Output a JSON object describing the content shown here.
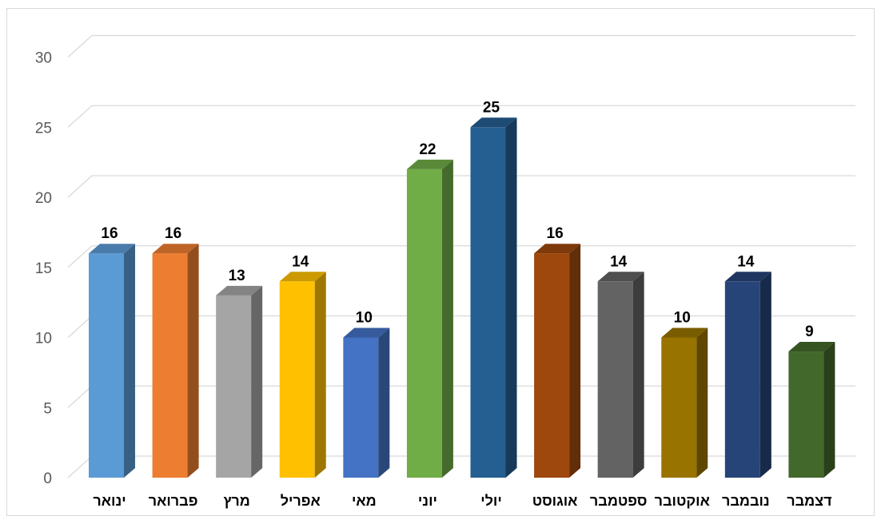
{
  "chart_data": {
    "type": "bar",
    "style": "3d-column",
    "title": "",
    "xlabel": "",
    "ylabel": "",
    "ylim": [
      0,
      30
    ],
    "yticks": [
      0,
      5,
      10,
      15,
      20,
      25,
      30
    ],
    "grid": true,
    "legend": "none",
    "categories": [
      "ינואר",
      "פברואר",
      "מרץ",
      "אפריל",
      "מאי",
      "יוני",
      "יולי",
      "אוגוסט",
      "ספטמבר",
      "אוקטובר",
      "נובמבר",
      "דצמבר"
    ],
    "values": [
      16,
      16,
      13,
      14,
      10,
      22,
      25,
      16,
      14,
      10,
      14,
      9
    ],
    "colors": [
      "#5b9bd5",
      "#ed7d31",
      "#a5a5a5",
      "#ffc000",
      "#4472c4",
      "#70ad47",
      "#255e91",
      "#9e480e",
      "#636363",
      "#997300",
      "#264478",
      "#43682b"
    ]
  }
}
